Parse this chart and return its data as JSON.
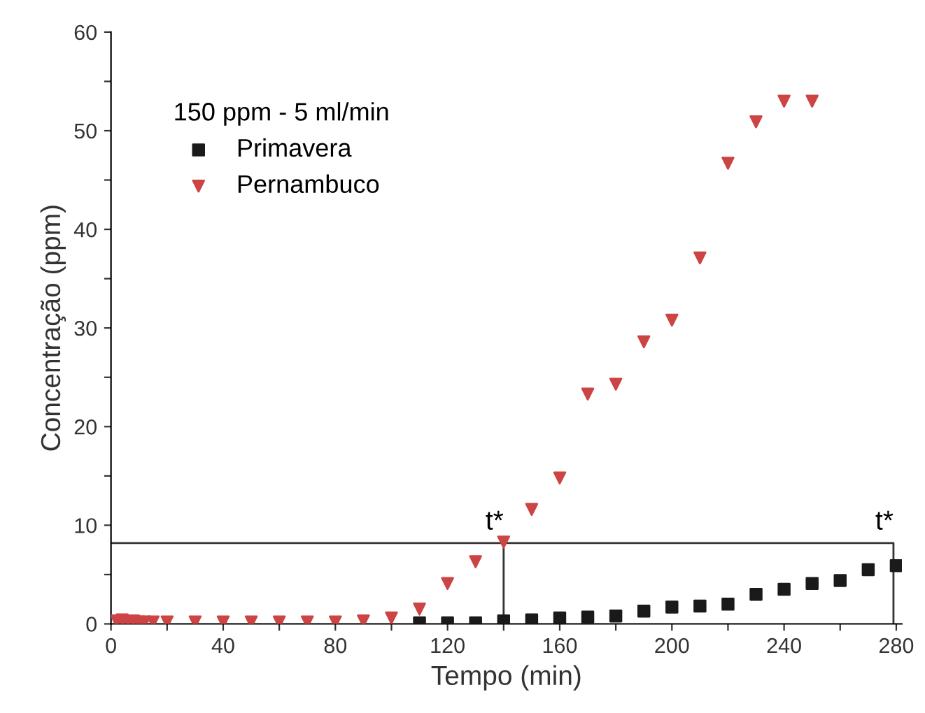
{
  "chart_data": {
    "type": "scatter",
    "xlabel": "Tempo (min)",
    "ylabel": "Concentração (ppm)",
    "legend_title": "150 ppm - 5 ml/min",
    "legend": "top left",
    "grid": false,
    "xlim": [
      0,
      282
    ],
    "ylim": [
      0,
      60
    ],
    "xticks": [
      0,
      {
        "value": 20,
        "label": null
      },
      40,
      {
        "value": 60,
        "label": null
      },
      80,
      {
        "value": 100,
        "label": null
      },
      120,
      {
        "value": 140,
        "label": null
      },
      160,
      {
        "value": 180,
        "label": null
      },
      200,
      {
        "value": 220,
        "label": null
      },
      240,
      {
        "value": 260,
        "label": null
      },
      280
    ],
    "yticks": [
      0,
      {
        "value": 5,
        "label": null
      },
      10,
      {
        "value": 15,
        "label": null
      },
      20,
      {
        "value": 25,
        "label": null
      },
      30,
      {
        "value": 35,
        "label": null
      },
      40,
      {
        "value": 45,
        "label": null
      },
      50,
      {
        "value": 55,
        "label": null
      },
      60
    ],
    "series": [
      {
        "name": "Primavera",
        "color": "#1a1a1a",
        "marker": "square",
        "x": [
          110,
          120,
          130,
          140,
          150,
          160,
          170,
          180,
          190,
          200,
          210,
          220,
          230,
          240,
          250,
          260,
          270,
          280
        ],
        "values": [
          0.1,
          0.1,
          0.1,
          0.3,
          0.4,
          0.6,
          0.7,
          0.8,
          1.3,
          1.7,
          1.8,
          2.0,
          3.0,
          3.5,
          4.1,
          4.4,
          5.5,
          5.9
        ]
      },
      {
        "name": "Pernambuco",
        "color": "#cc4444",
        "marker": "triangle",
        "x": [
          2,
          4,
          6,
          8,
          10,
          12,
          15,
          20,
          30,
          40,
          50,
          60,
          70,
          80,
          90,
          100,
          110,
          120,
          130,
          140,
          150,
          160,
          170,
          180,
          190,
          200,
          210,
          220,
          230,
          240,
          250
        ],
        "values": [
          0.3,
          0.4,
          0.3,
          0.3,
          0.2,
          0.2,
          0.2,
          0.2,
          0.2,
          0.2,
          0.2,
          0.2,
          0.2,
          0.2,
          0.3,
          0.6,
          1.5,
          4.1,
          6.3,
          8.3,
          11.6,
          14.8,
          23.3,
          24.3,
          28.6,
          30.8,
          37.1,
          46.7,
          50.9,
          53.0,
          53.0
        ]
      },
      {
        "type": "line",
        "color": "#333333",
        "x": [
          140,
          140
        ],
        "values": [
          0,
          8.2
        ]
      },
      {
        "type": "line",
        "color": "#333333",
        "x": [
          0,
          279,
          279
        ],
        "values": [
          8.2,
          8.2,
          0
        ]
      }
    ],
    "annotations": [
      {
        "text": "t*",
        "x": 140,
        "y": 8.2
      },
      {
        "text": "t*",
        "x": 279,
        "y": 8.2
      }
    ]
  }
}
